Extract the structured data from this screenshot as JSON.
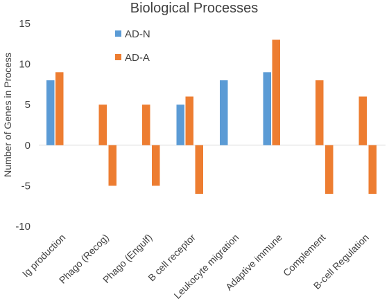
{
  "chart_data": {
    "type": "bar",
    "title": "Biological Processes",
    "xlabel": "",
    "ylabel": "Number of Genes in Process",
    "ylim": [
      -10,
      15
    ],
    "yticks": [
      -10,
      -5,
      0,
      5,
      10,
      15
    ],
    "grid": false,
    "legend_position": "top-left",
    "categories": [
      "Ig production",
      "Phago (Recog)",
      "Phago (Engulf)",
      "B cell receptor",
      "Leukocyte migration",
      "Adaptive immune",
      "Complement",
      "B-cell Regulation"
    ],
    "series": [
      {
        "name": "AD-N",
        "color": "#5b9bd5",
        "values": [
          8,
          null,
          null,
          5,
          8,
          9,
          null,
          null
        ]
      },
      {
        "name": "AD-A",
        "color": "#ed7d31",
        "values": [
          9,
          5,
          5,
          6,
          null,
          13,
          8,
          6
        ]
      },
      {
        "name": "",
        "color": "#ed7d31",
        "values": [
          null,
          -5,
          -5,
          -6,
          null,
          null,
          -6,
          -6
        ]
      }
    ]
  }
}
